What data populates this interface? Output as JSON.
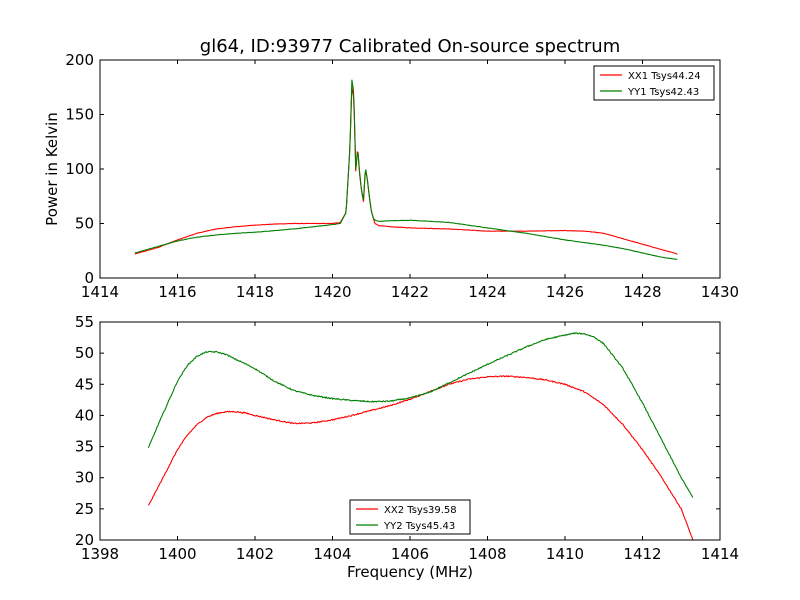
{
  "title": "gl64, ID:93977 Calibrated On-source spectrum",
  "xlabel": "Frequency (MHz)",
  "chart_data": [
    {
      "type": "line",
      "title": "gl64, ID:93977 Calibrated On-source spectrum",
      "xlabel": "",
      "ylabel": "Power in Kelvin",
      "xlim": [
        1414,
        1430
      ],
      "ylim": [
        0,
        200
      ],
      "xticks": [
        1414,
        1416,
        1418,
        1420,
        1422,
        1424,
        1426,
        1428,
        1430
      ],
      "yticks": [
        0,
        50,
        100,
        150,
        200
      ],
      "grid": false,
      "legend_position": "top-right",
      "series": [
        {
          "name": "XX1 Tsys44.24",
          "color": "#ff0000",
          "x": [
            1414.9,
            1415.5,
            1416.0,
            1416.5,
            1417.0,
            1417.5,
            1418.0,
            1418.5,
            1419.0,
            1419.5,
            1420.0,
            1420.2,
            1420.35,
            1420.45,
            1420.5,
            1420.55,
            1420.6,
            1420.65,
            1420.7,
            1420.75,
            1420.8,
            1420.85,
            1420.9,
            1420.95,
            1421.0,
            1421.05,
            1421.1,
            1421.2,
            1421.5,
            1422.0,
            1423.0,
            1424.0,
            1425.0,
            1426.0,
            1426.5,
            1427.0,
            1427.5,
            1428.0,
            1428.5,
            1428.9
          ],
          "values": [
            22,
            28,
            35,
            41,
            45,
            47,
            48.5,
            49.5,
            50,
            50,
            50,
            51,
            60,
            120,
            175,
            165,
            98,
            120,
            95,
            80,
            70,
            100,
            90,
            75,
            62,
            55,
            50,
            48,
            47,
            46,
            45,
            43,
            43,
            43.5,
            43,
            41,
            36,
            31,
            26,
            22
          ]
        },
        {
          "name": "YY1 Tsys42.43",
          "color": "#008000",
          "x": [
            1414.9,
            1415.5,
            1416.0,
            1416.5,
            1417.0,
            1417.5,
            1418.0,
            1418.5,
            1419.0,
            1419.5,
            1420.0,
            1420.2,
            1420.35,
            1420.45,
            1420.5,
            1420.55,
            1420.6,
            1420.65,
            1420.7,
            1420.75,
            1420.8,
            1420.85,
            1420.9,
            1420.95,
            1421.0,
            1421.05,
            1421.1,
            1421.2,
            1421.5,
            1422.0,
            1423.0,
            1424.0,
            1425.0,
            1426.0,
            1427.0,
            1427.5,
            1428.0,
            1428.5,
            1428.9
          ],
          "values": [
            23,
            29,
            34,
            37.5,
            39.5,
            41,
            42,
            43.5,
            45,
            47,
            49,
            50,
            60,
            120,
            182,
            170,
            100,
            118,
            97,
            80,
            72,
            102,
            90,
            75,
            62,
            55,
            53,
            52,
            52.5,
            53,
            51,
            46,
            41,
            35,
            30,
            27,
            23,
            19,
            17
          ]
        }
      ]
    },
    {
      "type": "line",
      "title": "",
      "xlabel": "Frequency (MHz)",
      "ylabel": "",
      "xlim": [
        1398,
        1414
      ],
      "ylim": [
        20,
        55
      ],
      "xticks": [
        1398,
        1400,
        1402,
        1404,
        1406,
        1408,
        1410,
        1412,
        1414
      ],
      "yticks": [
        20,
        25,
        30,
        35,
        40,
        45,
        50,
        55
      ],
      "grid": false,
      "legend_position": "bottom-center",
      "series": [
        {
          "name": "XX2 Tsys39.58",
          "color": "#ff0000",
          "x": [
            1399.25,
            1399.5,
            1399.75,
            1400.0,
            1400.25,
            1400.5,
            1400.75,
            1401.0,
            1401.25,
            1401.5,
            1401.75,
            1402.0,
            1402.5,
            1403.0,
            1403.5,
            1404.0,
            1404.5,
            1405.0,
            1405.5,
            1406.0,
            1406.5,
            1407.0,
            1407.5,
            1408.0,
            1408.5,
            1409.0,
            1409.5,
            1410.0,
            1410.5,
            1411.0,
            1411.5,
            1412.0,
            1412.5,
            1413.0,
            1413.3
          ],
          "values": [
            25.5,
            28.5,
            31.5,
            34.5,
            36.8,
            38.5,
            39.7,
            40.3,
            40.6,
            40.6,
            40.4,
            40.0,
            39.3,
            38.7,
            38.8,
            39.3,
            40.0,
            40.8,
            41.6,
            42.6,
            43.8,
            45.0,
            45.8,
            46.2,
            46.3,
            46.1,
            45.7,
            45.0,
            43.8,
            41.7,
            38.5,
            34.5,
            30.0,
            25.0,
            20.0
          ]
        },
        {
          "name": "YY2 Tsys45.43",
          "color": "#008000",
          "x": [
            1399.25,
            1399.5,
            1399.75,
            1400.0,
            1400.25,
            1400.5,
            1400.75,
            1401.0,
            1401.25,
            1401.5,
            1401.75,
            1402.0,
            1402.5,
            1403.0,
            1403.5,
            1404.0,
            1404.5,
            1405.0,
            1405.5,
            1406.0,
            1406.5,
            1407.0,
            1407.5,
            1408.0,
            1408.5,
            1409.0,
            1409.5,
            1410.0,
            1410.25,
            1410.5,
            1410.75,
            1411.0,
            1411.5,
            1412.0,
            1412.5,
            1413.0,
            1413.3
          ],
          "values": [
            34.8,
            38.5,
            42.0,
            45.5,
            48.0,
            49.5,
            50.2,
            50.2,
            49.8,
            49.0,
            48.3,
            47.5,
            45.5,
            44.0,
            43.2,
            42.7,
            42.4,
            42.2,
            42.3,
            42.8,
            43.7,
            45.2,
            46.7,
            48.2,
            49.6,
            51.0,
            52.2,
            52.9,
            53.2,
            53.1,
            52.6,
            51.5,
            47.5,
            42.0,
            36.0,
            30.0,
            26.8
          ]
        }
      ]
    }
  ]
}
